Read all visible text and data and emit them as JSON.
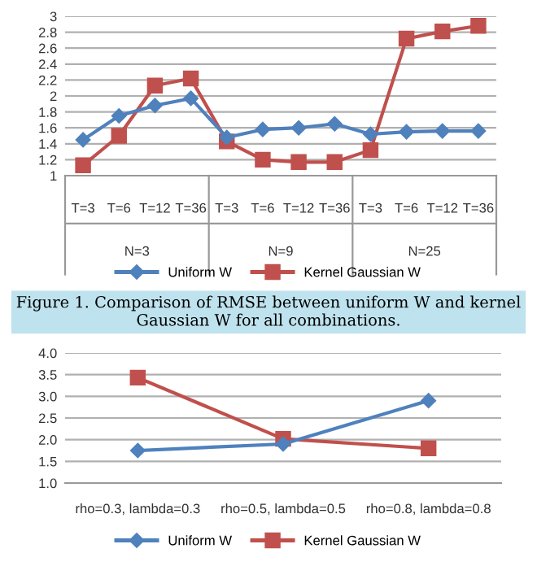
{
  "chart_data": [
    {
      "type": "line",
      "title": "Figure 1. Comparison of RMSE between uniform W and kernel Gaussian W for all combinations.",
      "categories": [
        "T=3",
        "T=6",
        "T=12",
        "T=36",
        "T=3",
        "T=6",
        "T=12",
        "T=36",
        "T=3",
        "T=6",
        "T=12",
        "T=36"
      ],
      "series": [
        {
          "name": "Uniform W",
          "color": "#4f81bd",
          "marker": "diamond",
          "values": [
            1.45,
            1.75,
            1.88,
            1.97,
            1.48,
            1.58,
            1.6,
            1.65,
            1.52,
            1.55,
            1.56,
            1.56
          ]
        },
        {
          "name": "Kernel Gaussian W",
          "color": "#c0504d",
          "marker": "square",
          "values": [
            1.13,
            1.5,
            2.13,
            2.22,
            1.43,
            1.2,
            1.17,
            1.17,
            1.32,
            2.72,
            2.81,
            2.88
          ]
        }
      ],
      "annotations": [
        "N=3",
        "N=9",
        "N=25"
      ],
      "ylim": [
        1,
        3
      ],
      "yticks": [
        1,
        1.2,
        1.4,
        1.6,
        1.8,
        2,
        2.2,
        2.4,
        2.6,
        2.8,
        3
      ],
      "grid": "y",
      "legend": "bottom"
    },
    {
      "type": "line",
      "categories": [
        "rho=0.3, lambda=0.3",
        "rho=0.5, lambda=0.5",
        "rho=0.8, lambda=0.8"
      ],
      "series": [
        {
          "name": "Uniform W",
          "color": "#4f81bd",
          "marker": "diamond",
          "values": [
            1.75,
            1.9,
            2.9
          ]
        },
        {
          "name": "Kernel Gaussian W",
          "color": "#c0504d",
          "marker": "square",
          "values": [
            3.43,
            2.02,
            1.8
          ]
        }
      ],
      "ylim": [
        1,
        4
      ],
      "yticks": [
        {
          "value": 1,
          "label": "1.0"
        },
        {
          "value": 1.5,
          "label": "1.5"
        },
        {
          "value": 2,
          "label": "2.0"
        },
        {
          "value": 2.5,
          "label": "2.5"
        },
        {
          "value": 3,
          "label": "3.0"
        },
        {
          "value": 3.5,
          "label": "3.5"
        },
        {
          "value": 4,
          "label": "4.0"
        }
      ],
      "grid": "y",
      "legend": "bottom"
    }
  ]
}
